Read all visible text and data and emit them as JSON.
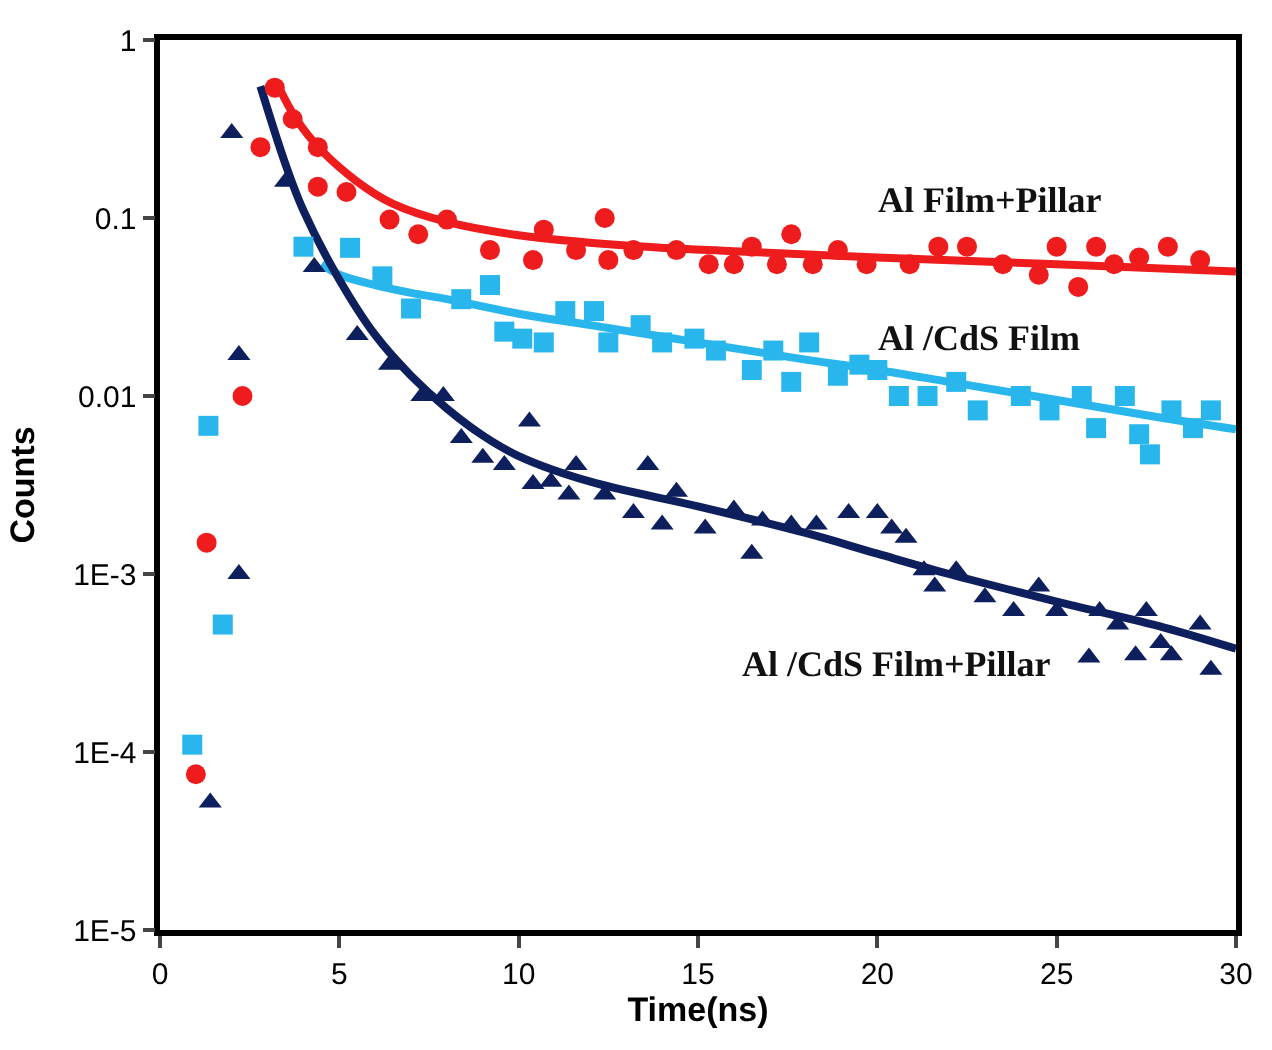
{
  "chart_data": {
    "type": "scatter",
    "xlabel": "Time(ns)",
    "ylabel": "Counts",
    "log": "y",
    "legend": false,
    "xlim": [
      0,
      30
    ],
    "xticks": [
      0,
      5,
      10,
      15,
      20,
      25,
      30
    ],
    "ylim": [
      1e-05,
      1
    ],
    "yticks": [
      {
        "value": 1e-05,
        "label": "1E-5"
      },
      {
        "value": 0.0001,
        "label": "1E-4"
      },
      {
        "value": 0.001,
        "label": "1E-3"
      },
      {
        "value": 0.01,
        "label": "0.01"
      },
      {
        "value": 0.1,
        "label": "0.1"
      },
      {
        "value": 1,
        "label": "1"
      }
    ],
    "series": [
      {
        "name": "Al Film+Pillar",
        "color": "#ee1c1c",
        "marker": "circle",
        "x": [
          1.0,
          1.3,
          2.3,
          2.8,
          3.2,
          3.7,
          4.4,
          4.4,
          5.2,
          6.4,
          7.2,
          8.0,
          9.2,
          10.4,
          10.7,
          11.6,
          12.4,
          12.5,
          13.2,
          14.4,
          15.3,
          16.0,
          16.5,
          17.2,
          17.6,
          18.2,
          18.9,
          19.7,
          20.9,
          21.7,
          22.5,
          23.5,
          24.5,
          25.0,
          25.6,
          26.1,
          26.6,
          27.3,
          28.1,
          29.0
        ],
        "values": [
          7.5e-05,
          0.0015,
          0.01,
          0.25,
          0.54,
          0.36,
          0.25,
          0.15,
          0.14,
          0.098,
          0.081,
          0.098,
          0.066,
          0.058,
          0.086,
          0.066,
          0.1,
          0.058,
          0.066,
          0.066,
          0.055,
          0.055,
          0.069,
          0.055,
          0.081,
          0.055,
          0.066,
          0.055,
          0.055,
          0.069,
          0.069,
          0.055,
          0.048,
          0.069,
          0.041,
          0.069,
          0.055,
          0.06,
          0.069,
          0.058
        ]
      },
      {
        "name": "Al /CdS Film",
        "color": "#29b6ec",
        "marker": "square",
        "x": [
          0.9,
          1.35,
          1.75,
          4.0,
          5.3,
          6.2,
          7.0,
          8.4,
          9.2,
          9.6,
          10.1,
          10.7,
          11.3,
          12.1,
          12.5,
          13.4,
          14.0,
          14.9,
          15.5,
          16.5,
          17.1,
          17.6,
          18.1,
          18.9,
          19.5,
          20.0,
          20.6,
          21.4,
          22.2,
          22.8,
          24.0,
          24.8,
          25.7,
          26.1,
          26.9,
          27.3,
          27.6,
          28.2,
          28.8,
          29.3
        ],
        "values": [
          0.00011,
          0.0068,
          0.00052,
          0.069,
          0.068,
          0.047,
          0.031,
          0.035,
          0.042,
          0.023,
          0.021,
          0.02,
          0.03,
          0.03,
          0.02,
          0.025,
          0.02,
          0.021,
          0.018,
          0.014,
          0.018,
          0.012,
          0.02,
          0.013,
          0.015,
          0.014,
          0.01,
          0.01,
          0.012,
          0.0083,
          0.01,
          0.0083,
          0.01,
          0.0066,
          0.01,
          0.0061,
          0.0047,
          0.0083,
          0.0066,
          0.0083
        ]
      },
      {
        "name": "Al /CdS Film+Pillar",
        "color": "#0d1f5c",
        "marker": "triangle",
        "x": [
          1.4,
          2.0,
          2.2,
          2.2,
          3.5,
          4.3,
          5.5,
          6.4,
          7.3,
          7.9,
          8.4,
          9.0,
          9.6,
          10.3,
          10.4,
          10.9,
          11.4,
          11.6,
          12.4,
          13.2,
          13.6,
          14.0,
          14.4,
          15.2,
          16.0,
          16.5,
          16.8,
          17.6,
          18.3,
          19.2,
          20.0,
          20.4,
          20.8,
          21.3,
          21.6,
          22.2,
          23.0,
          23.8,
          24.5,
          25.0,
          25.9,
          26.2,
          26.7,
          27.2,
          27.5,
          27.9,
          28.2,
          29.0,
          29.3
        ],
        "values": [
          5.2e-05,
          0.3,
          0.017,
          0.001,
          0.16,
          0.053,
          0.022,
          0.015,
          0.01,
          0.01,
          0.0058,
          0.0045,
          0.0041,
          0.0072,
          0.0032,
          0.0033,
          0.0028,
          0.0041,
          0.0028,
          0.0022,
          0.0041,
          0.0019,
          0.0029,
          0.0018,
          0.0023,
          0.0013,
          0.002,
          0.0019,
          0.0019,
          0.0022,
          0.0022,
          0.0018,
          0.0016,
          0.00105,
          0.00085,
          0.00105,
          0.00074,
          0.00062,
          0.00085,
          0.00062,
          0.00034,
          0.00062,
          0.00052,
          0.00035,
          0.00062,
          0.00041,
          0.00035,
          0.00052,
          0.00029
        ]
      },
      {
        "type": "line",
        "color": "#ee1c1c",
        "line_style": "solid",
        "x": [
          3.3,
          3.8,
          4.5,
          5.5,
          6.5,
          8,
          10,
          13,
          16,
          20,
          25,
          30
        ],
        "values": [
          0.55,
          0.36,
          0.24,
          0.16,
          0.12,
          0.095,
          0.08,
          0.07,
          0.065,
          0.06,
          0.055,
          0.05
        ]
      },
      {
        "type": "line",
        "color": "#29b6ec",
        "line_style": "solid",
        "x": [
          4.5,
          5,
          6,
          7,
          8,
          10,
          12,
          15,
          18,
          20,
          22,
          25,
          28,
          30
        ],
        "values": [
          0.055,
          0.048,
          0.042,
          0.038,
          0.035,
          0.029,
          0.025,
          0.02,
          0.016,
          0.014,
          0.012,
          0.0095,
          0.0075,
          0.0065
        ]
      },
      {
        "type": "line",
        "color": "#0d1f5c",
        "line_style": "solid",
        "x": [
          2.8,
          3.5,
          4,
          5,
          6,
          7,
          8,
          9,
          10,
          12,
          15,
          18,
          20,
          22,
          25,
          28,
          30
        ],
        "values": [
          0.55,
          0.2,
          0.11,
          0.045,
          0.022,
          0.013,
          0.0085,
          0.006,
          0.0046,
          0.0033,
          0.0024,
          0.0017,
          0.0013,
          0.001,
          0.0007,
          0.0005,
          0.00038
        ]
      }
    ]
  }
}
